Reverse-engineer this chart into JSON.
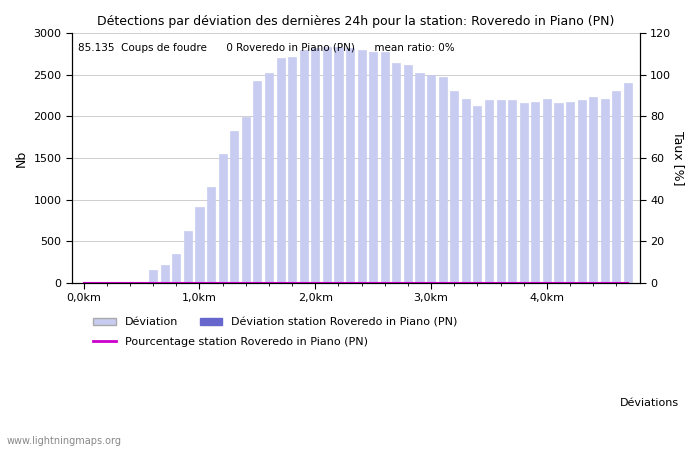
{
  "title": "Détections par déviation des dernières 24h pour la station: Roveredo in Piano (PN)",
  "info_text": "85.135  Coups de foudre      0 Roveredo in Piano (PN)      mean ratio: 0%",
  "xlabel": "Déviations",
  "ylabel_left": "Nb",
  "ylabel_right": "Taux [%]",
  "watermark": "www.lightningmaps.org",
  "x_ticks_labels": [
    "0,0km",
    "1,0km",
    "2,0km",
    "3,0km",
    "4,0km"
  ],
  "x_ticks_pos": [
    0,
    10,
    20,
    30,
    40
  ],
  "ylim_left": [
    0,
    3000
  ],
  "ylim_right": [
    0,
    120
  ],
  "bar_width": 0.7,
  "bar_color_light": "#c8ccf0",
  "bar_color_dark": "#6666cc",
  "percentage_line_color": "#cc00cc",
  "bars": [
    0,
    0,
    0,
    0,
    10,
    10,
    150,
    210,
    350,
    620,
    910,
    1150,
    1550,
    1830,
    1990,
    2430,
    2520,
    2700,
    2710,
    2800,
    2820,
    2830,
    2840,
    2820,
    2800,
    2780,
    2780,
    2640,
    2620,
    2520,
    2500,
    2480,
    2310,
    2210,
    2130,
    2200,
    2200,
    2200,
    2160,
    2170,
    2210,
    2160,
    2170,
    2200,
    2230,
    2210,
    2310,
    2400
  ],
  "station_bars": [
    0,
    0,
    0,
    0,
    0,
    0,
    0,
    0,
    0,
    0,
    0,
    0,
    0,
    0,
    0,
    0,
    0,
    0,
    0,
    0,
    0,
    0,
    0,
    0,
    0,
    0,
    0,
    0,
    0,
    0,
    0,
    0,
    0,
    0,
    0,
    0,
    0,
    0,
    0,
    0,
    0,
    0,
    0,
    0,
    0,
    0,
    0,
    0
  ],
  "percentage_values": [
    0,
    0,
    0,
    0,
    0,
    0,
    0,
    0,
    0,
    0,
    0,
    0,
    0,
    0,
    0,
    0,
    0,
    0,
    0,
    0,
    0,
    0,
    0,
    0,
    0,
    0,
    0,
    0,
    0,
    0,
    0,
    0,
    0,
    0,
    0,
    0,
    0,
    0,
    0,
    0,
    0,
    0,
    0,
    0,
    0,
    0,
    0,
    0
  ]
}
